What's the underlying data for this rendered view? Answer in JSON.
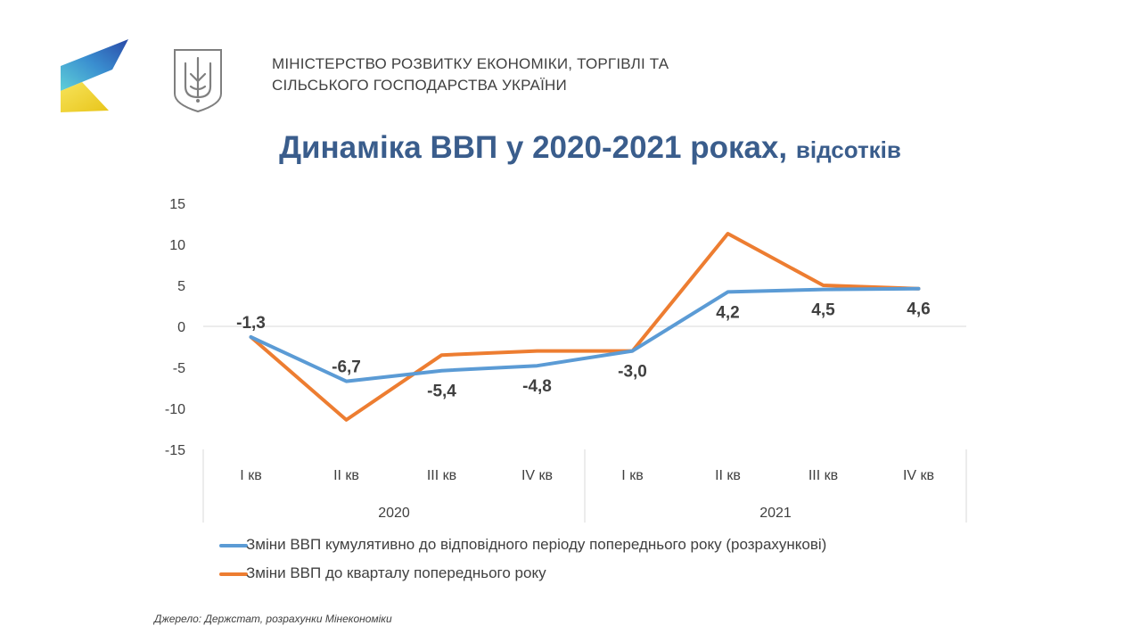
{
  "header": {
    "ministry_line1": "МІНІСТЕРСТВО  РОЗВИТКУ ЕКОНОМІКИ,  ТОРГІВЛІ ТА",
    "ministry_line2": "СІЛЬСЬКОГО ГОСПОДАРСТВА  УКРАЇНИ"
  },
  "colors": {
    "title": "#3a5d8c",
    "series_cumulative": "#5b9bd5",
    "series_quarterly": "#ed7d31",
    "text": "#404040",
    "gridline": "#d9d9d9"
  },
  "chart_data": {
    "type": "line",
    "title": "Динаміка ВВП у 2020-2021 роках,",
    "title_unit": "відсотків",
    "ylim": [
      -15,
      15
    ],
    "yticks": [
      "15",
      "10",
      "5",
      "0",
      "-5",
      "-10",
      "-15"
    ],
    "categories": [
      "І кв",
      "ІІ кв",
      "ІІІ кв",
      "ІV кв",
      "І кв",
      "ІІ кв",
      "ІІІ кв",
      "ІV кв"
    ],
    "groups": [
      {
        "label": "2020",
        "span": 4
      },
      {
        "label": "2021",
        "span": 4
      }
    ],
    "grid": "zero-line only",
    "legend_position": "bottom",
    "series": [
      {
        "name": "Зміни ВВП кумулятивно до відповідного періоду попереднього  року (розрахункові)",
        "values": [
          -1.3,
          -6.7,
          -5.4,
          -4.8,
          -3.0,
          4.2,
          4.5,
          4.6
        ],
        "labels": [
          "-1,3",
          "-6,7",
          "-5,4",
          "-4,8",
          "-3,0",
          "4,2",
          "4,5",
          "4,6"
        ]
      },
      {
        "name": "Зміни ВВП до кварталу попереднього року",
        "values": [
          -1.3,
          -11.4,
          -3.5,
          -3.0,
          -3.0,
          11.3,
          5.0,
          4.6
        ]
      }
    ]
  },
  "footer": {
    "source": "Джерело: Держстат, розрахунки Мінекономіки"
  }
}
